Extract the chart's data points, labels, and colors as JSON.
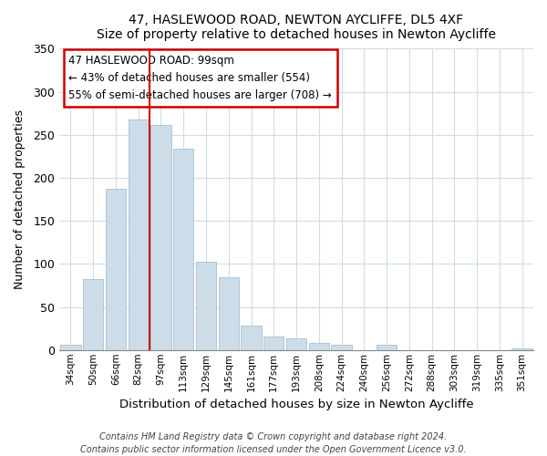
{
  "title": "47, HASLEWOOD ROAD, NEWTON AYCLIFFE, DL5 4XF",
  "subtitle": "Size of property relative to detached houses in Newton Aycliffe",
  "xlabel": "Distribution of detached houses by size in Newton Aycliffe",
  "ylabel": "Number of detached properties",
  "bar_color": "#ccdce8",
  "bar_edge_color": "#aabfd0",
  "categories": [
    "34sqm",
    "50sqm",
    "66sqm",
    "82sqm",
    "97sqm",
    "113sqm",
    "129sqm",
    "145sqm",
    "161sqm",
    "177sqm",
    "193sqm",
    "208sqm",
    "224sqm",
    "240sqm",
    "256sqm",
    "272sqm",
    "288sqm",
    "303sqm",
    "319sqm",
    "335sqm",
    "351sqm"
  ],
  "values": [
    6,
    82,
    187,
    268,
    261,
    234,
    102,
    85,
    28,
    16,
    14,
    8,
    6,
    0,
    6,
    0,
    0,
    0,
    0,
    0,
    2
  ],
  "ylim": [
    0,
    350
  ],
  "yticks": [
    0,
    50,
    100,
    150,
    200,
    250,
    300,
    350
  ],
  "vline_x_index": 3.5,
  "property_line_label": "47 HASLEWOOD ROAD: 99sqm",
  "annotation_line1": "← 43% of detached houses are smaller (554)",
  "annotation_line2": "55% of semi-detached houses are larger (708) →",
  "vline_color": "#cc0000",
  "annotation_box_facecolor": "#ffffff",
  "annotation_box_edgecolor": "#cc0000",
  "footer1": "Contains HM Land Registry data © Crown copyright and database right 2024.",
  "footer2": "Contains public sector information licensed under the Open Government Licence v3.0.",
  "background_color": "#ffffff",
  "plot_background": "#ffffff",
  "grid_color": "#d0dce8"
}
